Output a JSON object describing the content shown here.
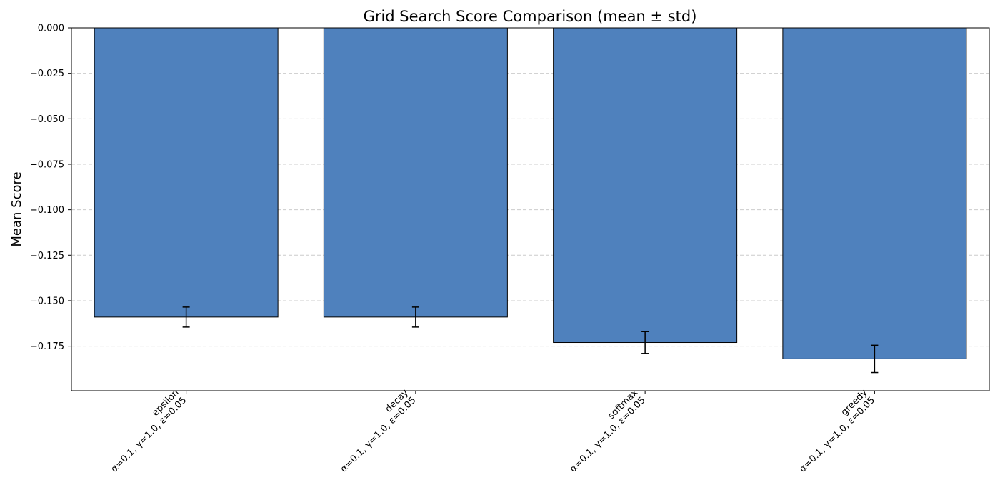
{
  "chart_data": {
    "type": "bar",
    "title": "Grid Search Score Comparison (mean ± std)",
    "xlabel": "",
    "ylabel": "Mean Score",
    "ylim": [
      -0.1995,
      0.0
    ],
    "yticks": [
      0.0,
      -0.025,
      -0.05,
      -0.075,
      -0.1,
      -0.125,
      -0.15,
      -0.175
    ],
    "ytick_labels": [
      "0.000",
      "−0.025",
      "−0.050",
      "−0.075",
      "−0.100",
      "−0.125",
      "−0.150",
      "−0.175"
    ],
    "grid": "y-dashed",
    "categories": [
      "epsilon\nα=0.1, γ=1.0, ε=0.05",
      "decay\nα=0.1, γ=1.0, ε=0.05",
      "softmax\nα=0.1, γ=1.0, ε=0.05",
      "greedy\nα=0.1, γ=1.0, ε=0.05"
    ],
    "values": [
      -0.159,
      -0.159,
      -0.173,
      -0.182
    ],
    "errors": [
      0.0055,
      0.0055,
      0.006,
      0.0075
    ],
    "bar_color": "#4f81bd",
    "edge_color": "#000000"
  }
}
